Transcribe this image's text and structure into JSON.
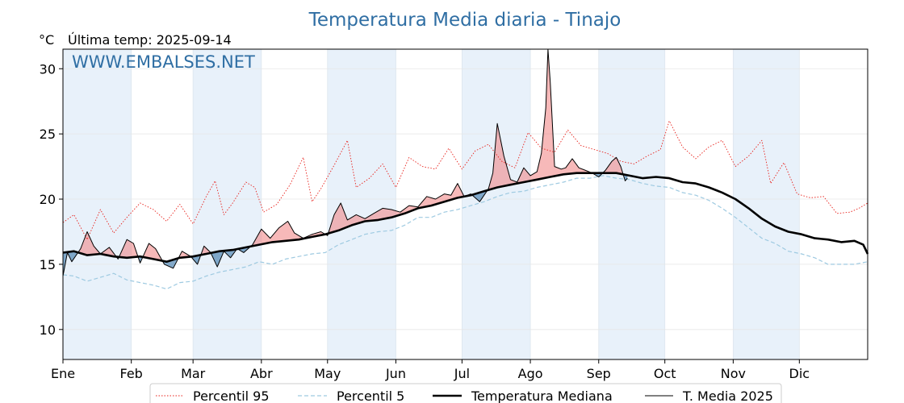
{
  "header": {
    "title": "Temperatura Media diaria - Tinajo",
    "unit": "°C",
    "last_temp": "Última temp: 2025-09-14",
    "watermark": "WWW.EMBALSES.NET"
  },
  "chart_data": {
    "type": "line",
    "title": "Temperatura Media diaria - Tinajo",
    "ylabel": "°C",
    "xlabel": "",
    "x_unit": "day_of_year",
    "xlim": [
      1,
      366
    ],
    "ylim": [
      7.7,
      31.5
    ],
    "yticks": [
      10,
      15,
      20,
      25,
      30
    ],
    "months": [
      {
        "label": "Ene",
        "start": 1
      },
      {
        "label": "Feb",
        "start": 32
      },
      {
        "label": "Mar",
        "start": 60
      },
      {
        "label": "Abr",
        "start": 91
      },
      {
        "label": "May",
        "start": 121
      },
      {
        "label": "Jun",
        "start": 152
      },
      {
        "label": "Jul",
        "start": 182
      },
      {
        "label": "Ago",
        "start": 213
      },
      {
        "label": "Sep",
        "start": 244
      },
      {
        "label": "Oct",
        "start": 274
      },
      {
        "label": "Nov",
        "start": 305
      },
      {
        "label": "Dic",
        "start": 335
      }
    ],
    "grid": true,
    "legend_position": "bottom",
    "series": [
      {
        "name": "Percentil 95",
        "style": "dotted",
        "color": "#e8201a",
        "points": [
          [
            1,
            18.2
          ],
          [
            6,
            18.8
          ],
          [
            12,
            16.9
          ],
          [
            18,
            19.2
          ],
          [
            24,
            17.4
          ],
          [
            30,
            18.6
          ],
          [
            36,
            19.7
          ],
          [
            42,
            19.2
          ],
          [
            48,
            18.3
          ],
          [
            54,
            19.6
          ],
          [
            60,
            18.1
          ],
          [
            66,
            20.2
          ],
          [
            70,
            21.4
          ],
          [
            74,
            18.8
          ],
          [
            78,
            19.7
          ],
          [
            84,
            21.3
          ],
          [
            88,
            20.9
          ],
          [
            92,
            19.0
          ],
          [
            98,
            19.6
          ],
          [
            104,
            21.1
          ],
          [
            110,
            23.2
          ],
          [
            114,
            19.8
          ],
          [
            118,
            20.8
          ],
          [
            124,
            22.6
          ],
          [
            130,
            24.5
          ],
          [
            134,
            20.9
          ],
          [
            140,
            21.6
          ],
          [
            146,
            22.7
          ],
          [
            152,
            20.9
          ],
          [
            158,
            23.2
          ],
          [
            164,
            22.5
          ],
          [
            170,
            22.3
          ],
          [
            176,
            23.9
          ],
          [
            182,
            22.3
          ],
          [
            188,
            23.7
          ],
          [
            194,
            24.2
          ],
          [
            200,
            22.9
          ],
          [
            206,
            22.4
          ],
          [
            212,
            25.1
          ],
          [
            218,
            23.9
          ],
          [
            224,
            23.6
          ],
          [
            230,
            25.3
          ],
          [
            236,
            24.1
          ],
          [
            242,
            23.8
          ],
          [
            248,
            23.5
          ],
          [
            254,
            22.9
          ],
          [
            260,
            22.7
          ],
          [
            266,
            23.3
          ],
          [
            272,
            23.8
          ],
          [
            276,
            26.0
          ],
          [
            282,
            24.0
          ],
          [
            288,
            23.1
          ],
          [
            294,
            24.0
          ],
          [
            300,
            24.5
          ],
          [
            306,
            22.5
          ],
          [
            312,
            23.3
          ],
          [
            318,
            24.5
          ],
          [
            322,
            21.2
          ],
          [
            328,
            22.8
          ],
          [
            334,
            20.4
          ],
          [
            340,
            20.1
          ],
          [
            346,
            20.2
          ],
          [
            352,
            18.9
          ],
          [
            358,
            19.0
          ],
          [
            362,
            19.3
          ],
          [
            366,
            19.7
          ]
        ]
      },
      {
        "name": "Percentil 5",
        "style": "dashed",
        "color": "#9ecae1",
        "points": [
          [
            1,
            14.2
          ],
          [
            6,
            14.1
          ],
          [
            12,
            13.7
          ],
          [
            18,
            14.0
          ],
          [
            24,
            14.3
          ],
          [
            30,
            13.8
          ],
          [
            36,
            13.6
          ],
          [
            42,
            13.4
          ],
          [
            48,
            13.1
          ],
          [
            54,
            13.6
          ],
          [
            60,
            13.7
          ],
          [
            66,
            14.1
          ],
          [
            72,
            14.4
          ],
          [
            78,
            14.6
          ],
          [
            84,
            14.8
          ],
          [
            90,
            15.2
          ],
          [
            96,
            15.0
          ],
          [
            102,
            15.4
          ],
          [
            108,
            15.6
          ],
          [
            114,
            15.8
          ],
          [
            120,
            15.9
          ],
          [
            126,
            16.5
          ],
          [
            132,
            16.9
          ],
          [
            138,
            17.3
          ],
          [
            144,
            17.5
          ],
          [
            150,
            17.6
          ],
          [
            156,
            18.0
          ],
          [
            162,
            18.6
          ],
          [
            168,
            18.6
          ],
          [
            174,
            19.0
          ],
          [
            180,
            19.2
          ],
          [
            186,
            19.5
          ],
          [
            192,
            19.8
          ],
          [
            198,
            20.2
          ],
          [
            204,
            20.5
          ],
          [
            210,
            20.6
          ],
          [
            216,
            20.9
          ],
          [
            222,
            21.1
          ],
          [
            228,
            21.3
          ],
          [
            234,
            21.6
          ],
          [
            240,
            21.6
          ],
          [
            246,
            21.8
          ],
          [
            252,
            21.6
          ],
          [
            258,
            21.5
          ],
          [
            264,
            21.2
          ],
          [
            270,
            21.0
          ],
          [
            276,
            20.9
          ],
          [
            282,
            20.5
          ],
          [
            288,
            20.3
          ],
          [
            294,
            19.9
          ],
          [
            300,
            19.3
          ],
          [
            306,
            18.6
          ],
          [
            312,
            17.8
          ],
          [
            318,
            17.0
          ],
          [
            324,
            16.6
          ],
          [
            330,
            16.0
          ],
          [
            336,
            15.8
          ],
          [
            342,
            15.5
          ],
          [
            348,
            15.0
          ],
          [
            354,
            15.0
          ],
          [
            360,
            15.0
          ],
          [
            366,
            15.2
          ]
        ]
      },
      {
        "name": "Temperatura Mediana",
        "style": "solid-thick",
        "color": "#000000",
        "points": [
          [
            1,
            15.9
          ],
          [
            6,
            16.0
          ],
          [
            12,
            15.7
          ],
          [
            18,
            15.8
          ],
          [
            24,
            15.6
          ],
          [
            30,
            15.5
          ],
          [
            36,
            15.6
          ],
          [
            42,
            15.4
          ],
          [
            48,
            15.2
          ],
          [
            54,
            15.5
          ],
          [
            60,
            15.6
          ],
          [
            66,
            15.8
          ],
          [
            72,
            16.0
          ],
          [
            78,
            16.1
          ],
          [
            84,
            16.3
          ],
          [
            90,
            16.5
          ],
          [
            96,
            16.7
          ],
          [
            102,
            16.8
          ],
          [
            108,
            16.9
          ],
          [
            114,
            17.1
          ],
          [
            120,
            17.3
          ],
          [
            126,
            17.6
          ],
          [
            132,
            18.0
          ],
          [
            138,
            18.3
          ],
          [
            144,
            18.4
          ],
          [
            150,
            18.6
          ],
          [
            156,
            18.9
          ],
          [
            162,
            19.3
          ],
          [
            168,
            19.5
          ],
          [
            174,
            19.8
          ],
          [
            180,
            20.1
          ],
          [
            186,
            20.3
          ],
          [
            192,
            20.6
          ],
          [
            198,
            20.9
          ],
          [
            204,
            21.1
          ],
          [
            210,
            21.3
          ],
          [
            216,
            21.5
          ],
          [
            222,
            21.7
          ],
          [
            228,
            21.9
          ],
          [
            234,
            22.0
          ],
          [
            240,
            22.0
          ],
          [
            246,
            22.0
          ],
          [
            252,
            22.0
          ],
          [
            258,
            21.8
          ],
          [
            264,
            21.6
          ],
          [
            270,
            21.7
          ],
          [
            276,
            21.6
          ],
          [
            282,
            21.3
          ],
          [
            288,
            21.2
          ],
          [
            294,
            20.9
          ],
          [
            300,
            20.5
          ],
          [
            306,
            20.0
          ],
          [
            312,
            19.3
          ],
          [
            318,
            18.5
          ],
          [
            324,
            17.9
          ],
          [
            330,
            17.5
          ],
          [
            336,
            17.3
          ],
          [
            342,
            17.0
          ],
          [
            348,
            16.9
          ],
          [
            354,
            16.7
          ],
          [
            360,
            16.8
          ],
          [
            364,
            16.5
          ],
          [
            366,
            15.8
          ]
        ]
      },
      {
        "name": "T. Media 2025",
        "style": "solid-thin",
        "color": "#000000",
        "points": [
          [
            1,
            14.1
          ],
          [
            3,
            15.9
          ],
          [
            5,
            15.2
          ],
          [
            9,
            16.2
          ],
          [
            12,
            17.5
          ],
          [
            15,
            16.4
          ],
          [
            18,
            15.8
          ],
          [
            22,
            16.3
          ],
          [
            26,
            15.4
          ],
          [
            30,
            16.9
          ],
          [
            33,
            16.6
          ],
          [
            36,
            15.1
          ],
          [
            40,
            16.6
          ],
          [
            43,
            16.2
          ],
          [
            47,
            15.0
          ],
          [
            51,
            14.7
          ],
          [
            55,
            16.0
          ],
          [
            59,
            15.6
          ],
          [
            62,
            15.0
          ],
          [
            65,
            16.4
          ],
          [
            68,
            15.9
          ],
          [
            71,
            14.8
          ],
          [
            74,
            16.0
          ],
          [
            77,
            15.5
          ],
          [
            80,
            16.2
          ],
          [
            83,
            15.9
          ],
          [
            87,
            16.5
          ],
          [
            91,
            17.7
          ],
          [
            95,
            17.0
          ],
          [
            99,
            17.8
          ],
          [
            103,
            18.3
          ],
          [
            106,
            17.4
          ],
          [
            110,
            17.0
          ],
          [
            114,
            17.3
          ],
          [
            118,
            17.5
          ],
          [
            121,
            17.2
          ],
          [
            124,
            18.8
          ],
          [
            127,
            19.7
          ],
          [
            130,
            18.4
          ],
          [
            134,
            18.8
          ],
          [
            138,
            18.5
          ],
          [
            142,
            18.9
          ],
          [
            146,
            19.3
          ],
          [
            150,
            19.2
          ],
          [
            154,
            19.0
          ],
          [
            158,
            19.5
          ],
          [
            162,
            19.4
          ],
          [
            166,
            20.2
          ],
          [
            170,
            20.0
          ],
          [
            174,
            20.4
          ],
          [
            177,
            20.3
          ],
          [
            180,
            21.2
          ],
          [
            183,
            20.2
          ],
          [
            186,
            20.4
          ],
          [
            190,
            19.8
          ],
          [
            194,
            20.8
          ],
          [
            196,
            22.0
          ],
          [
            198,
            25.8
          ],
          [
            201,
            23.3
          ],
          [
            204,
            21.5
          ],
          [
            207,
            21.3
          ],
          [
            210,
            22.4
          ],
          [
            213,
            21.8
          ],
          [
            216,
            22.1
          ],
          [
            218,
            23.5
          ],
          [
            220,
            27.0
          ],
          [
            221,
            31.5
          ],
          [
            222,
            29.0
          ],
          [
            224,
            22.5
          ],
          [
            227,
            22.3
          ],
          [
            229,
            22.4
          ],
          [
            232,
            23.1
          ],
          [
            235,
            22.4
          ],
          [
            238,
            22.2
          ],
          [
            241,
            22.0
          ],
          [
            244,
            21.7
          ],
          [
            247,
            22.2
          ],
          [
            250,
            22.9
          ],
          [
            252,
            23.2
          ],
          [
            254,
            22.5
          ],
          [
            256,
            21.4
          ],
          [
            257,
            21.6
          ]
        ]
      }
    ]
  },
  "legend": {
    "p95": "Percentil 95",
    "p5": "Percentil 5",
    "median": "Temperatura Mediana",
    "current": "T. Media 2025"
  },
  "colors": {
    "title": "#2f6ea3",
    "band": "#e8f1fa",
    "above": "#f08080",
    "below": "#5b8db8",
    "p95": "#e8201a",
    "p5": "#9ecae1"
  }
}
